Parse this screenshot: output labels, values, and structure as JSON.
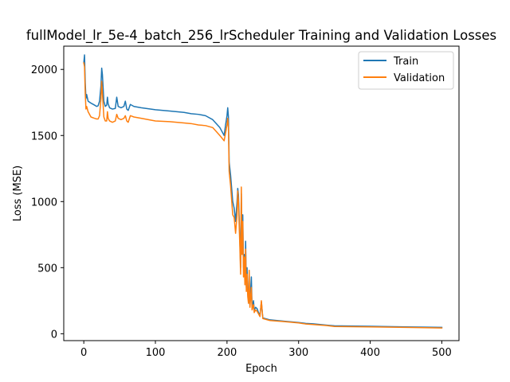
{
  "chart_data": {
    "type": "line",
    "title": "fullModel_lr_5e-4_batch_256_lrScheduler Training and Validation Losses",
    "xlabel": "Epoch",
    "ylabel": "Loss (MSE)",
    "xlim": [
      -28,
      524
    ],
    "ylim": [
      -52,
      2176
    ],
    "xticks": [
      0,
      100,
      200,
      300,
      400,
      500
    ],
    "yticks": [
      0,
      500,
      1000,
      1500,
      2000
    ],
    "grid": false,
    "legend_position": "top-right",
    "series": [
      {
        "name": "Train",
        "color": "#1f77b4",
        "points": [
          [
            0,
            2050
          ],
          [
            1,
            2110
          ],
          [
            2,
            1900
          ],
          [
            3,
            1780
          ],
          [
            4,
            1810
          ],
          [
            6,
            1760
          ],
          [
            10,
            1745
          ],
          [
            15,
            1730
          ],
          [
            18,
            1720
          ],
          [
            20,
            1725
          ],
          [
            22,
            1760
          ],
          [
            24,
            1880
          ],
          [
            25,
            2010
          ],
          [
            26,
            1960
          ],
          [
            28,
            1760
          ],
          [
            30,
            1720
          ],
          [
            32,
            1730
          ],
          [
            33,
            1790
          ],
          [
            34,
            1740
          ],
          [
            36,
            1710
          ],
          [
            40,
            1700
          ],
          [
            44,
            1705
          ],
          [
            46,
            1790
          ],
          [
            48,
            1720
          ],
          [
            52,
            1710
          ],
          [
            56,
            1720
          ],
          [
            58,
            1760
          ],
          [
            60,
            1700
          ],
          [
            62,
            1690
          ],
          [
            65,
            1735
          ],
          [
            70,
            1720
          ],
          [
            80,
            1710
          ],
          [
            100,
            1695
          ],
          [
            120,
            1685
          ],
          [
            140,
            1675
          ],
          [
            150,
            1665
          ],
          [
            160,
            1660
          ],
          [
            170,
            1650
          ],
          [
            180,
            1620
          ],
          [
            190,
            1560
          ],
          [
            196,
            1500
          ],
          [
            198,
            1580
          ],
          [
            200,
            1650
          ],
          [
            201,
            1710
          ],
          [
            202,
            1640
          ],
          [
            203,
            1300
          ],
          [
            205,
            1200
          ],
          [
            208,
            1000
          ],
          [
            210,
            950
          ],
          [
            212,
            850
          ],
          [
            214,
            1000
          ],
          [
            215,
            1100
          ],
          [
            216,
            1050
          ],
          [
            218,
            700
          ],
          [
            219,
            500
          ],
          [
            220,
            1060
          ],
          [
            221,
            650
          ],
          [
            222,
            900
          ],
          [
            223,
            500
          ],
          [
            224,
            600
          ],
          [
            225,
            400
          ],
          [
            226,
            700
          ],
          [
            227,
            350
          ],
          [
            228,
            500
          ],
          [
            229,
            300
          ],
          [
            230,
            250
          ],
          [
            231,
            350
          ],
          [
            232,
            220
          ],
          [
            234,
            430
          ],
          [
            235,
            200
          ],
          [
            237,
            250
          ],
          [
            238,
            180
          ],
          [
            240,
            200
          ],
          [
            242,
            190
          ],
          [
            244,
            160
          ],
          [
            246,
            140
          ],
          [
            248,
            240
          ],
          [
            250,
            120
          ],
          [
            260,
            105
          ],
          [
            280,
            95
          ],
          [
            300,
            85
          ],
          [
            310,
            78
          ],
          [
            320,
            75
          ],
          [
            340,
            65
          ],
          [
            350,
            60
          ],
          [
            400,
            56
          ],
          [
            450,
            52
          ],
          [
            500,
            48
          ]
        ]
      },
      {
        "name": "Validation",
        "color": "#ff7f0e",
        "points": [
          [
            0,
            2050
          ],
          [
            1,
            2020
          ],
          [
            2,
            1820
          ],
          [
            3,
            1700
          ],
          [
            4,
            1720
          ],
          [
            6,
            1680
          ],
          [
            10,
            1640
          ],
          [
            15,
            1630
          ],
          [
            18,
            1625
          ],
          [
            20,
            1625
          ],
          [
            22,
            1650
          ],
          [
            24,
            1780
          ],
          [
            25,
            1910
          ],
          [
            26,
            1820
          ],
          [
            28,
            1640
          ],
          [
            30,
            1610
          ],
          [
            32,
            1610
          ],
          [
            33,
            1680
          ],
          [
            34,
            1630
          ],
          [
            36,
            1610
          ],
          [
            40,
            1600
          ],
          [
            44,
            1610
          ],
          [
            46,
            1660
          ],
          [
            48,
            1630
          ],
          [
            52,
            1620
          ],
          [
            56,
            1630
          ],
          [
            58,
            1650
          ],
          [
            60,
            1610
          ],
          [
            62,
            1600
          ],
          [
            65,
            1650
          ],
          [
            70,
            1640
          ],
          [
            80,
            1630
          ],
          [
            100,
            1610
          ],
          [
            120,
            1605
          ],
          [
            140,
            1595
          ],
          [
            150,
            1590
          ],
          [
            160,
            1580
          ],
          [
            170,
            1575
          ],
          [
            180,
            1560
          ],
          [
            190,
            1500
          ],
          [
            196,
            1460
          ],
          [
            198,
            1520
          ],
          [
            200,
            1580
          ],
          [
            201,
            1630
          ],
          [
            202,
            1560
          ],
          [
            203,
            1230
          ],
          [
            205,
            1120
          ],
          [
            208,
            900
          ],
          [
            210,
            880
          ],
          [
            212,
            760
          ],
          [
            214,
            900
          ],
          [
            215,
            1080
          ],
          [
            216,
            1000
          ],
          [
            218,
            650
          ],
          [
            219,
            450
          ],
          [
            220,
            1110
          ],
          [
            221,
            600
          ],
          [
            222,
            850
          ],
          [
            223,
            430
          ],
          [
            224,
            580
          ],
          [
            225,
            370
          ],
          [
            226,
            640
          ],
          [
            227,
            320
          ],
          [
            228,
            450
          ],
          [
            229,
            280
          ],
          [
            230,
            230
          ],
          [
            231,
            480
          ],
          [
            232,
            200
          ],
          [
            234,
            350
          ],
          [
            235,
            180
          ],
          [
            237,
            220
          ],
          [
            238,
            160
          ],
          [
            240,
            180
          ],
          [
            242,
            170
          ],
          [
            244,
            150
          ],
          [
            246,
            130
          ],
          [
            248,
            250
          ],
          [
            250,
            115
          ],
          [
            260,
            100
          ],
          [
            280,
            92
          ],
          [
            300,
            82
          ],
          [
            310,
            74
          ],
          [
            320,
            70
          ],
          [
            340,
            62
          ],
          [
            350,
            55
          ],
          [
            400,
            52
          ],
          [
            450,
            48
          ],
          [
            500,
            44
          ]
        ]
      }
    ]
  }
}
